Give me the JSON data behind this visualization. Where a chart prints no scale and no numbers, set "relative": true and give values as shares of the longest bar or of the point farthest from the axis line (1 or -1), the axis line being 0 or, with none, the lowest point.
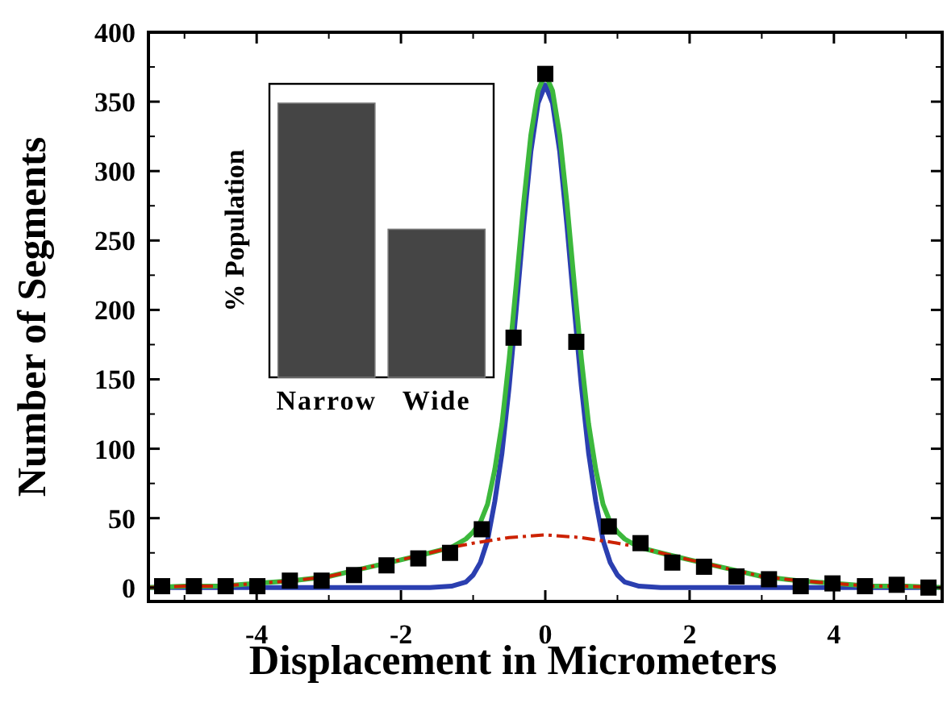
{
  "chart_data": [
    {
      "type": "line",
      "xlabel": "Displacement in Micrometers",
      "ylabel": "Number of Segments",
      "xlim": [
        -5.5,
        5.5
      ],
      "ylim": [
        -10,
        400
      ],
      "xticks": [
        -4,
        -2,
        0,
        2,
        4
      ],
      "yticks": [
        0,
        50,
        100,
        150,
        200,
        250,
        300,
        350,
        400
      ],
      "grid": false,
      "legend": false,
      "series": [
        {
          "color": "#2b3fb0",
          "line_style": "solid",
          "x": [
            -5.5,
            -5,
            -4.5,
            -4,
            -3.5,
            -3,
            -2.5,
            -2,
            -1.6,
            -1.3,
            -1.1,
            -1,
            -0.9,
            -0.8,
            -0.7,
            -0.6,
            -0.5,
            -0.4,
            -0.3,
            -0.2,
            -0.1,
            0,
            0.1,
            0.2,
            0.3,
            0.4,
            0.5,
            0.6,
            0.7,
            0.8,
            0.9,
            1,
            1.1,
            1.3,
            1.6,
            2,
            2.5,
            3,
            3.5,
            4,
            4.5,
            5,
            5.5
          ],
          "values": [
            0,
            0,
            0,
            0,
            0,
            0,
            0,
            0,
            0,
            1,
            4,
            9,
            18,
            34,
            62,
            97,
            145,
            202,
            261,
            314,
            349,
            362,
            349,
            314,
            261,
            202,
            145,
            97,
            62,
            34,
            18,
            9,
            4,
            1,
            0,
            0,
            0,
            0,
            0,
            0,
            0,
            0,
            0
          ]
        },
        {
          "color": "#3cb83c",
          "line_style": "solid",
          "x": [
            -5.5,
            -5,
            -4.5,
            -4,
            -3.5,
            -3,
            -2.5,
            -2,
            -1.6,
            -1.3,
            -1.1,
            -1,
            -0.9,
            -0.8,
            -0.7,
            -0.6,
            -0.5,
            -0.4,
            -0.3,
            -0.2,
            -0.1,
            0,
            0.1,
            0.2,
            0.3,
            0.4,
            0.5,
            0.6,
            0.7,
            0.8,
            0.9,
            1,
            1.1,
            1.3,
            1.6,
            2,
            2.5,
            3,
            3.5,
            4,
            4.5,
            5,
            5.5
          ],
          "values": [
            0,
            1,
            1,
            3,
            5,
            8,
            14,
            20,
            25,
            29,
            35,
            40,
            47,
            60,
            85,
            118,
            165,
            220,
            277,
            326,
            358,
            370,
            358,
            326,
            277,
            220,
            165,
            118,
            85,
            60,
            47,
            40,
            35,
            29,
            25,
            20,
            14,
            8,
            5,
            3,
            1,
            1,
            0
          ]
        },
        {
          "color": "#cc2200",
          "line_style": "dashdot",
          "x": [
            -5.5,
            -5,
            -4.5,
            -4,
            -3.5,
            -3,
            -2.5,
            -2,
            -1.6,
            -1.3,
            -1,
            -0.5,
            0,
            0.5,
            1,
            1.3,
            1.6,
            2,
            2.5,
            3,
            3.5,
            4,
            4.5,
            5,
            5.5
          ],
          "values": [
            0,
            1,
            1,
            3,
            5,
            8,
            14,
            20,
            25,
            29,
            32,
            36,
            38,
            36,
            32,
            29,
            25,
            20,
            14,
            8,
            5,
            3,
            1,
            1,
            0
          ]
        },
        {
          "type": "scatter",
          "color": "#000000",
          "marker": "square",
          "x": [
            -5.31,
            -4.87,
            -4.43,
            -3.99,
            -3.54,
            -3.1,
            -2.65,
            -2.2,
            -1.76,
            -1.32,
            -0.88,
            -0.44,
            0,
            0.43,
            0.88,
            1.32,
            1.76,
            2.2,
            2.65,
            3.1,
            3.54,
            3.98,
            4.43,
            4.87,
            5.31
          ],
          "values": [
            1,
            1,
            1,
            1,
            5,
            5,
            9,
            16,
            21,
            25,
            42,
            180,
            370,
            177,
            44,
            32,
            18,
            15,
            8,
            6,
            1,
            3,
            1,
            2,
            0
          ]
        }
      ]
    },
    {
      "type": "bar",
      "ylabel": "% Population",
      "categories": [
        "Narrow",
        "Wide"
      ],
      "values": [
        1,
        0.54
      ],
      "color": "#454545",
      "relative": true,
      "tick_labels": "x"
    }
  ]
}
